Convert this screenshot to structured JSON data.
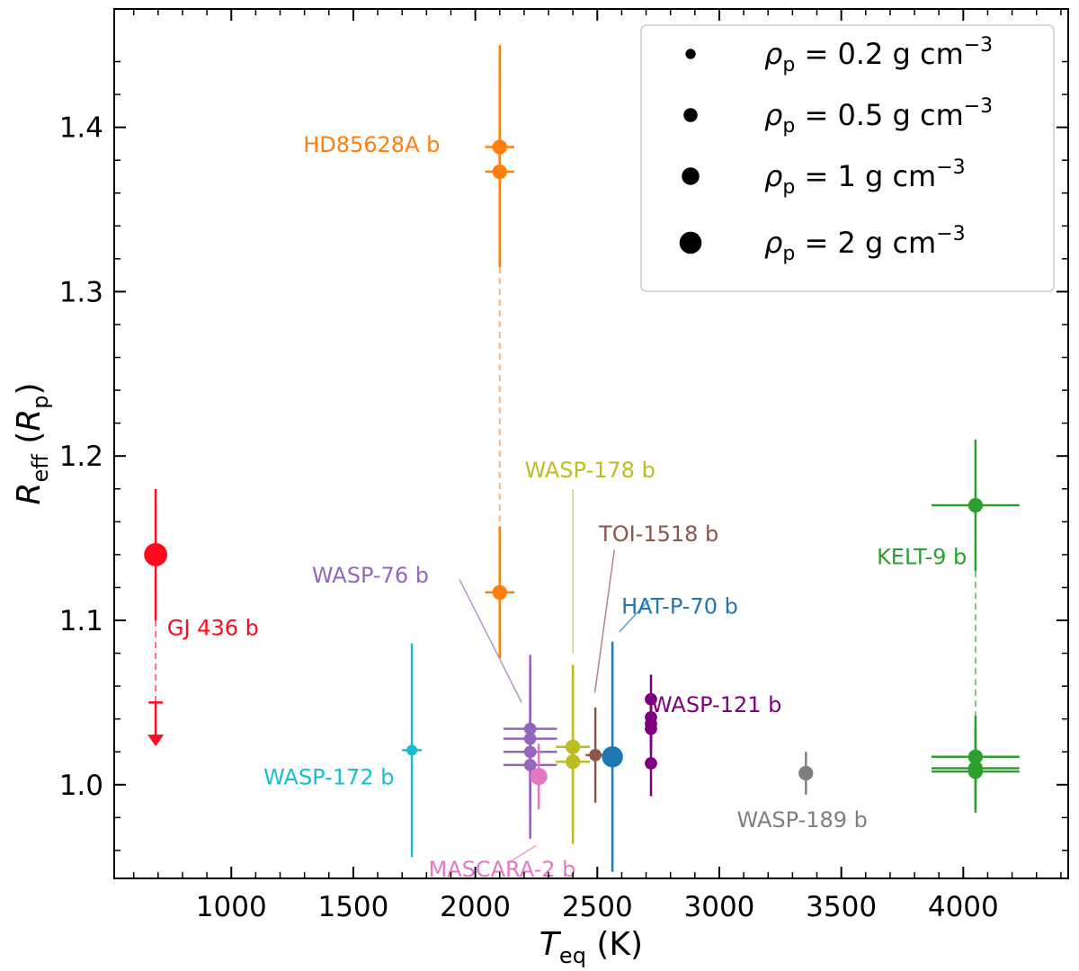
{
  "chart_data": {
    "type": "scatter",
    "xlabel": {
      "main": "T",
      "sub": "eq",
      "unit": " (K)"
    },
    "ylabel": {
      "main": "R",
      "sub": "eff",
      "unit_main": "R",
      "unit_sub": "p"
    },
    "xlim": [
      520,
      4430
    ],
    "ylim": [
      0.943,
      1.472
    ],
    "xticks": [
      1000,
      1500,
      2000,
      2500,
      3000,
      3500,
      4000
    ],
    "yticks": [
      1.0,
      1.1,
      1.2,
      1.3,
      1.4
    ],
    "ytick_labels": [
      "1.0",
      "1.1",
      "1.2",
      "1.3",
      "1.4"
    ],
    "grid": false,
    "legend": {
      "placement": "top-right",
      "entries": [
        {
          "symbol": "ρ",
          "sub": "p",
          "text": " = 0.2 g cm",
          "sup": "−3",
          "density": 0.2
        },
        {
          "symbol": "ρ",
          "sub": "p",
          "text": " = 0.5 g cm",
          "sup": "−3",
          "density": 0.5
        },
        {
          "symbol": "ρ",
          "sub": "p",
          "text": " = 1 g cm",
          "sup": "−3",
          "density": 1
        },
        {
          "symbol": "ρ",
          "sub": "p",
          "text": " = 2 g cm",
          "sup": "−3",
          "density": 2
        }
      ]
    },
    "planets": [
      {
        "name": "GJ 436 b",
        "color": "#ff0a1e",
        "points": [
          {
            "x": 690,
            "y": 1.14,
            "yerr": [
              0.04,
              0.04
            ],
            "density": 2.0
          }
        ],
        "upper_limit": {
          "from": 1.05,
          "to": 1.025
        },
        "dashed": [
          1.1,
          1.05
        ]
      },
      {
        "name": "HD85628A b",
        "color": "#ff7f0e",
        "points": [
          {
            "x": 2100,
            "y": 1.388,
            "xerr": [
              60,
              60
            ],
            "yerr": [
              0.062,
              0.062
            ],
            "density": 0.5
          },
          {
            "x": 2100,
            "y": 1.373,
            "xerr": [
              60,
              60
            ],
            "yerr": [
              0.058,
              0.058
            ],
            "density": 0.5
          },
          {
            "x": 2100,
            "y": 1.117,
            "xerr": [
              60,
              60
            ],
            "yerr": [
              0.04,
              0.04
            ],
            "density": 0.5
          }
        ],
        "dashed": [
          1.315,
          1.157
        ]
      },
      {
        "name": "KELT-9 b",
        "color": "#2ca02c",
        "points": [
          {
            "x": 4050,
            "y": 1.17,
            "xerr": [
              180,
              180
            ],
            "yerr": [
              0.04,
              0.04
            ],
            "density": 0.5
          },
          {
            "x": 4050,
            "y": 1.017,
            "xerr": [
              180,
              180
            ],
            "yerr": [
              0.025,
              0.025
            ],
            "density": 0.5
          },
          {
            "x": 4050,
            "y": 1.01,
            "xerr": [
              180,
              180
            ],
            "yerr": [
              0.025,
              0.025
            ],
            "density": 0.5
          },
          {
            "x": 4050,
            "y": 1.008,
            "xerr": [
              180,
              180
            ],
            "yerr": [
              0.025,
              0.025
            ],
            "density": 0.5
          }
        ],
        "dashed": [
          1.13,
          1.042
        ]
      },
      {
        "name": "WASP-172 b",
        "color": "#17becf",
        "points": [
          {
            "x": 1740,
            "y": 1.021,
            "xerr": [
              40,
              40
            ],
            "yerr": [
              0.065,
              0.065
            ],
            "density": 0.2
          }
        ]
      },
      {
        "name": "WASP-76 b",
        "color": "#9467bd",
        "points": [
          {
            "x": 2225,
            "y": 1.034,
            "xerr": [
              110,
              110
            ],
            "yerr": [
              0.045,
              0.045
            ],
            "density": 0.3
          },
          {
            "x": 2225,
            "y": 1.028,
            "xerr": [
              110,
              110
            ],
            "yerr": [
              0.045,
              0.045
            ],
            "density": 0.3
          },
          {
            "x": 2225,
            "y": 1.02,
            "xerr": [
              110,
              110
            ],
            "yerr": [
              0.045,
              0.045
            ],
            "density": 0.3
          },
          {
            "x": 2225,
            "y": 1.012,
            "xerr": [
              110,
              110
            ],
            "yerr": [
              0.045,
              0.045
            ],
            "density": 0.3
          }
        ]
      },
      {
        "name": "MASCARA-2 b",
        "color": "#e377c2",
        "points": [
          {
            "x": 2260,
            "y": 1.005,
            "yerr": [
              0.02,
              0.02
            ],
            "density": 0.8
          }
        ]
      },
      {
        "name": "WASP-178 b",
        "color": "#bcbd22",
        "points": [
          {
            "x": 2400,
            "y": 1.023,
            "xerr": [
              70,
              70
            ],
            "yerr": [
              0.05,
              0.05
            ],
            "density": 0.5
          },
          {
            "x": 2400,
            "y": 1.014,
            "xerr": [
              70,
              70
            ],
            "yerr": [
              0.05,
              0.05
            ],
            "density": 0.5
          }
        ]
      },
      {
        "name": "TOI-1518 b",
        "color": "#8c564b",
        "points": [
          {
            "x": 2492,
            "y": 1.018,
            "xerr": [
              40,
              40
            ],
            "yerr": [
              0.029,
              0.029
            ],
            "density": 0.3
          }
        ]
      },
      {
        "name": "HAT-P-70 b",
        "color": "#1f77b4",
        "points": [
          {
            "x": 2562,
            "y": 1.017,
            "yerr": [
              0.07,
              0.07
            ],
            "density": 1.5
          }
        ]
      },
      {
        "name": "WASP-121 b",
        "color": "#800080",
        "points": [
          {
            "x": 2720,
            "y": 1.052,
            "yerr": [
              0.015,
              0.015
            ],
            "density": 0.3
          },
          {
            "x": 2720,
            "y": 1.041,
            "yerr": [
              0.015,
              0.015
            ],
            "density": 0.3
          },
          {
            "x": 2720,
            "y": 1.037,
            "yerr": [
              0.015,
              0.015
            ],
            "density": 0.3
          },
          {
            "x": 2720,
            "y": 1.034,
            "yerr": [
              0.015,
              0.015
            ],
            "density": 0.3
          },
          {
            "x": 2720,
            "y": 1.013,
            "yerr": [
              0.02,
              0.02
            ],
            "density": 0.3
          }
        ]
      },
      {
        "name": "WASP-189 b",
        "color": "#7f7f7f",
        "points": [
          {
            "x": 3355,
            "y": 1.007,
            "yerr": [
              0.013,
              0.013
            ],
            "density": 0.5
          }
        ]
      }
    ],
    "annotations": [
      {
        "text": "HD85628A b",
        "color": "#ff7f0e",
        "x": 1575,
        "y": 1.39
      },
      {
        "text": "GJ 436 b",
        "color": "#ff0a1e",
        "x": 925,
        "y": 1.096
      },
      {
        "text": "WASP-178 b",
        "color": "#bcbd22",
        "x": 2470,
        "y": 1.192
      },
      {
        "text": "TOI-1518 b",
        "color": "#8c564b",
        "x": 2752,
        "y": 1.153
      },
      {
        "text": "WASP-76 b",
        "color": "#9467bd",
        "x": 1570,
        "y": 1.128
      },
      {
        "text": "HAT-P-70 b",
        "color": "#1f77b4",
        "x": 2838,
        "y": 1.109
      },
      {
        "text": "KELT-9 b",
        "color": "#2ca02c",
        "x": 3830,
        "y": 1.139
      },
      {
        "text": "WASP-121 b",
        "color": "#800080",
        "x": 2988,
        "y": 1.049
      },
      {
        "text": "WASP-172 b",
        "color": "#17becf",
        "x": 1400,
        "y": 1.005
      },
      {
        "text": "WASP-189 b",
        "color": "#7f7f7f",
        "x": 3340,
        "y": 0.979
      },
      {
        "text": "MASCARA-2 b",
        "color": "#e377c2",
        "x": 2110,
        "y": 0.949
      }
    ],
    "connectors": [
      {
        "color": "#9467bd",
        "from": [
          1935,
          1.125
        ],
        "to": [
          2190,
          1.05
        ]
      },
      {
        "color": "#bcbd22",
        "from": [
          2400,
          1.18
        ],
        "to": [
          2400,
          1.08
        ]
      },
      {
        "color": "#8c564b",
        "from": [
          2570,
          1.143
        ],
        "to": [
          2490,
          1.056
        ]
      },
      {
        "color": "#1f77b4",
        "from": [
          2710,
          1.112
        ],
        "to": [
          2590,
          1.093
        ]
      },
      {
        "color": "#e377c2",
        "from": [
          2130,
          0.952
        ],
        "to": [
          2250,
          0.963
        ]
      }
    ]
  }
}
